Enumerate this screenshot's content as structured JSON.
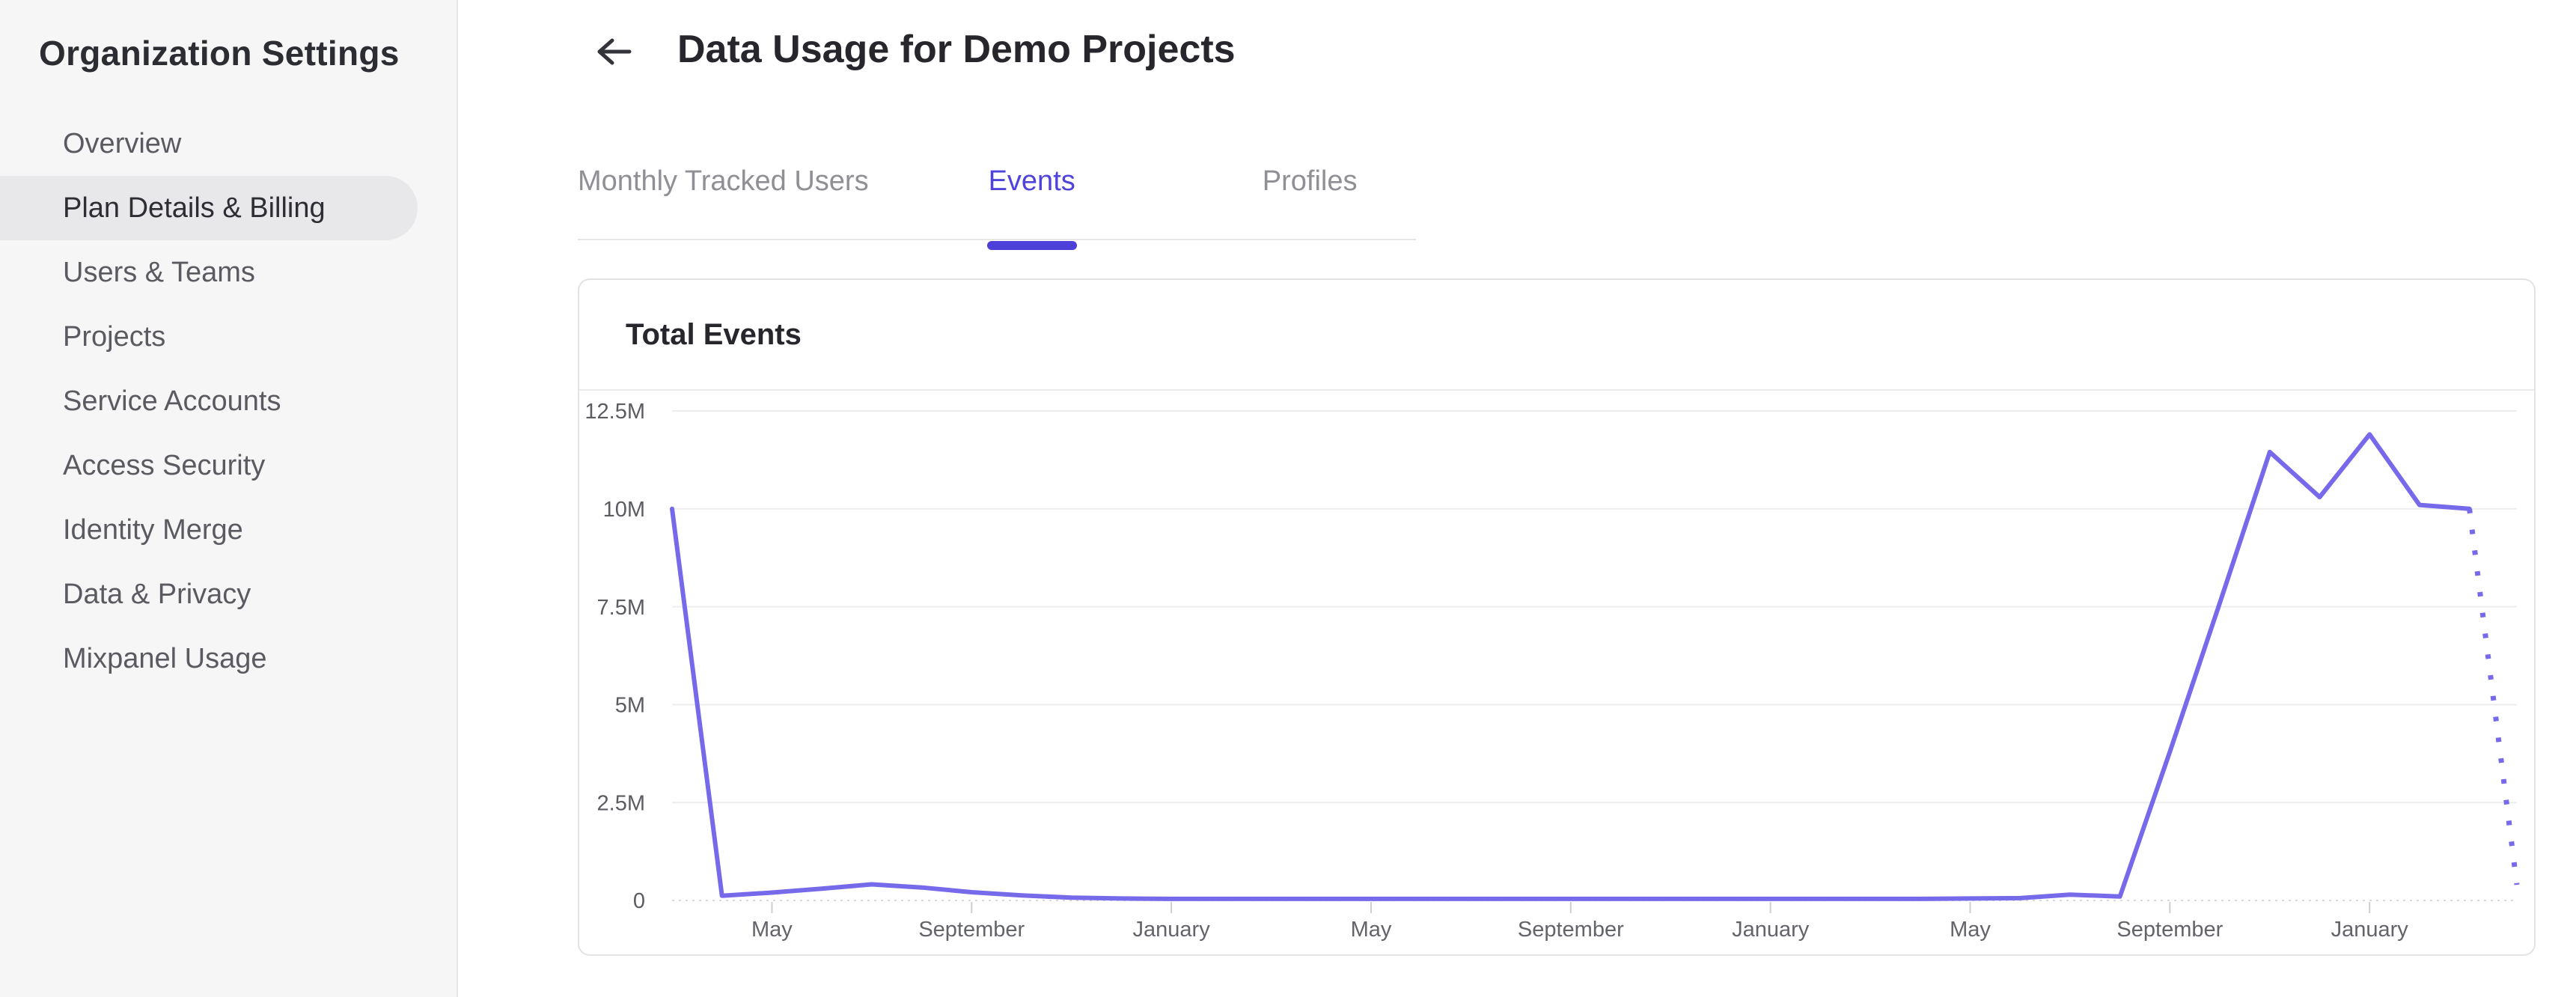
{
  "sidebar": {
    "title": "Organization Settings",
    "items": [
      {
        "label": "Overview",
        "selected": false
      },
      {
        "label": "Plan Details & Billing",
        "selected": true
      },
      {
        "label": "Users & Teams",
        "selected": false
      },
      {
        "label": "Projects",
        "selected": false
      },
      {
        "label": "Service Accounts",
        "selected": false
      },
      {
        "label": "Access Security",
        "selected": false
      },
      {
        "label": "Identity Merge",
        "selected": false
      },
      {
        "label": "Data & Privacy",
        "selected": false
      },
      {
        "label": "Mixpanel Usage",
        "selected": false
      }
    ]
  },
  "header": {
    "title": "Data Usage for Demo Projects",
    "back_icon": "left-arrow"
  },
  "tabs": [
    {
      "label": "Monthly Tracked Users",
      "active": false,
      "gap_after": 160
    },
    {
      "label": "Events",
      "active": true,
      "gap_after": 250
    },
    {
      "label": "Profiles",
      "active": false,
      "gap_after": 0
    }
  ],
  "card": {
    "title": "Total Events"
  },
  "colors": {
    "line": "#7669ea",
    "active_tab_text": "#4f43dc",
    "active_tab_bar": "#4c40d9",
    "grid_line": "#ededef",
    "zero_line": "#d9d9dc",
    "tick_mark": "#cfcfd2",
    "y_label": "#5b5c62",
    "x_label": "#63646a",
    "sidebar_bg": "#f6f6f7",
    "selected_pill_bg": "#e8e8ea"
  },
  "chart_data": {
    "type": "line",
    "title": "Total Events",
    "ylabel": "",
    "xlabel": "",
    "ylim_millions": [
      0,
      12.5
    ],
    "grid": "horizontal",
    "legend": "none",
    "y_ticks": [
      {
        "value_millions": 0,
        "label": "0"
      },
      {
        "value_millions": 2.5,
        "label": "2.5M"
      },
      {
        "value_millions": 5,
        "label": "5M"
      },
      {
        "value_millions": 7.5,
        "label": "7.5M"
      },
      {
        "value_millions": 10,
        "label": "10M"
      },
      {
        "value_millions": 12.5,
        "label": "12.5M"
      }
    ],
    "x_ticks": [
      {
        "month_index": 2,
        "label": "May"
      },
      {
        "month_index": 6,
        "label": "September"
      },
      {
        "month_index": 10,
        "label": "January"
      },
      {
        "month_index": 14,
        "label": "May"
      },
      {
        "month_index": 18,
        "label": "September"
      },
      {
        "month_index": 22,
        "label": "January"
      },
      {
        "month_index": 26,
        "label": "May"
      },
      {
        "month_index": 30,
        "label": "September"
      },
      {
        "month_index": 34,
        "label": "January"
      }
    ],
    "x_domain_months": 36.95,
    "points": [
      {
        "month": "Mar 2020",
        "value_millions": 10.0
      },
      {
        "month": "Apr 2020",
        "value_millions": 0.12
      },
      {
        "month": "May 2020",
        "value_millions": 0.2
      },
      {
        "month": "Jun 2020",
        "value_millions": 0.3
      },
      {
        "month": "Jul 2020",
        "value_millions": 0.41
      },
      {
        "month": "Aug 2020",
        "value_millions": 0.33
      },
      {
        "month": "Sep 2020",
        "value_millions": 0.21
      },
      {
        "month": "Oct 2020",
        "value_millions": 0.13
      },
      {
        "month": "Nov 2020",
        "value_millions": 0.07
      },
      {
        "month": "Dec 2020",
        "value_millions": 0.05
      },
      {
        "month": "Jan 2021",
        "value_millions": 0.04
      },
      {
        "month": "Feb 2021",
        "value_millions": 0.04
      },
      {
        "month": "Mar 2021",
        "value_millions": 0.04
      },
      {
        "month": "Apr 2021",
        "value_millions": 0.04
      },
      {
        "month": "May 2021",
        "value_millions": 0.04
      },
      {
        "month": "Jun 2021",
        "value_millions": 0.04
      },
      {
        "month": "Jul 2021",
        "value_millions": 0.04
      },
      {
        "month": "Aug 2021",
        "value_millions": 0.04
      },
      {
        "month": "Sep 2021",
        "value_millions": 0.04
      },
      {
        "month": "Oct 2021",
        "value_millions": 0.04
      },
      {
        "month": "Nov 2021",
        "value_millions": 0.04
      },
      {
        "month": "Dec 2021",
        "value_millions": 0.04
      },
      {
        "month": "Jan 2022",
        "value_millions": 0.04
      },
      {
        "month": "Feb 2022",
        "value_millions": 0.04
      },
      {
        "month": "Mar 2022",
        "value_millions": 0.04
      },
      {
        "month": "Apr 2022",
        "value_millions": 0.04
      },
      {
        "month": "May 2022",
        "value_millions": 0.05
      },
      {
        "month": "Jun 2022",
        "value_millions": 0.06
      },
      {
        "month": "Jul 2022",
        "value_millions": 0.15
      },
      {
        "month": "Aug 2022",
        "value_millions": 0.1
      },
      {
        "month": "Sep 2022",
        "value_millions": 3.8
      },
      {
        "month": "Oct 2022",
        "value_millions": 7.6
      },
      {
        "month": "Nov 2022",
        "value_millions": 11.45
      },
      {
        "month": "Dec 2022",
        "value_millions": 10.3
      },
      {
        "month": "Jan 2023",
        "value_millions": 11.9
      },
      {
        "month": "Feb 2023",
        "value_millions": 10.1
      },
      {
        "month": "Mar 2023",
        "value_millions": 10.0
      }
    ],
    "projection": {
      "month": "Apr 2023",
      "value_millions": 0.4,
      "month_index": 36.95,
      "style": "dotted"
    }
  }
}
